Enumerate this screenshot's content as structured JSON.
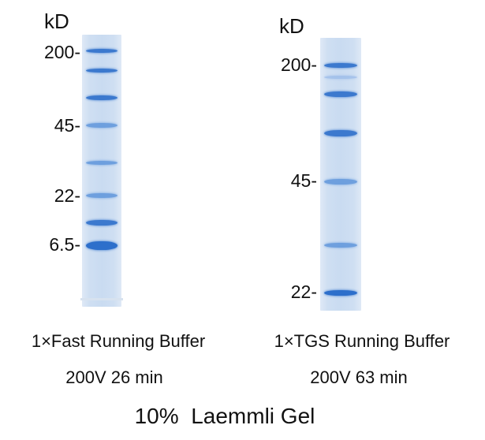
{
  "colors": {
    "background": "#ffffff",
    "gel": "#cddff2",
    "band_strong": "#2d6fcb",
    "band_mid": "#4f8bd8",
    "band_light": "#86ade6",
    "text": "#111111"
  },
  "gels": [
    {
      "unit": "kD",
      "markers": [
        "200-",
        "45-",
        "22-",
        "6.5-"
      ],
      "buffer": "1×Fast Running Buffer",
      "run": "200V 26 min",
      "bands": [
        {
          "strength": "strong"
        },
        {
          "strength": "strong"
        },
        {
          "strength": "strong"
        },
        {
          "strength": "mid"
        },
        {
          "strength": "mid"
        },
        {
          "strength": "mid"
        },
        {
          "strength": "strong"
        },
        {
          "strength": "strongest"
        }
      ]
    },
    {
      "unit": "kD",
      "markers": [
        "200-",
        "45-",
        "22-"
      ],
      "buffer": "1×TGS Running Buffer",
      "run": "200V 63 min",
      "bands": [
        {
          "strength": "strong"
        },
        {
          "strength": "light"
        },
        {
          "strength": "strong"
        },
        {
          "strength": "strong"
        },
        {
          "strength": "mid"
        },
        {
          "strength": "mid"
        },
        {
          "strength": "strongest"
        }
      ]
    }
  ],
  "title": "10%  Laemmli Gel"
}
